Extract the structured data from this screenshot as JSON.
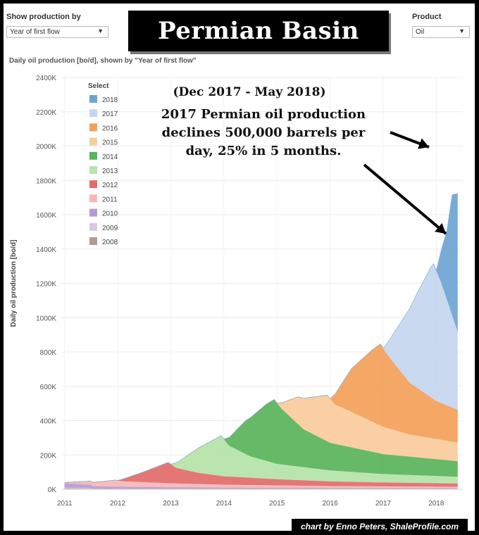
{
  "controls": {
    "show_production_label": "Show production by",
    "show_production_value": "Year of first flow",
    "product_label": "Product",
    "product_value": "Oil"
  },
  "banner_title": "Permian Basin",
  "chart_title": "Daily oil production [bo/d], shown by \"Year of first flow\"",
  "annotation": {
    "line1": "(Dec 2017 - May 2018)",
    "line2": "2017 Permian oil production",
    "line3": "declines 500,000 barrels per",
    "line4": "day, 25% in 5 months."
  },
  "credit": "chart by Enno Peters, ShaleProfile.com",
  "chart_data": {
    "type": "area",
    "ylabel": "Daily oil production [bo/d]",
    "xlabel": "",
    "ylim": [
      0,
      2400000
    ],
    "xlim": [
      2010.95,
      2018.5
    ],
    "y_ticks": [
      "0K",
      "200K",
      "400K",
      "600K",
      "800K",
      "1000K",
      "1200K",
      "1400K",
      "1600K",
      "1800K",
      "2000K",
      "2200K",
      "2400K"
    ],
    "y_tick_values": [
      0,
      200000,
      400000,
      600000,
      800000,
      1000000,
      1200000,
      1400000,
      1600000,
      1800000,
      2000000,
      2200000,
      2400000
    ],
    "x_ticks": [
      "2011",
      "2012",
      "2013",
      "2014",
      "2015",
      "2016",
      "2017",
      "2018"
    ],
    "x_tick_values": [
      2011,
      2012,
      2013,
      2014,
      2015,
      2016,
      2017,
      2018
    ],
    "grid": true,
    "legend_title": "Select",
    "legend_position": "top-left",
    "series": [
      {
        "name": "2008",
        "color": "#b89a8e",
        "start": 2011.0,
        "end": 2011.5,
        "points": [
          [
            2011.0,
            5000
          ],
          [
            2011.5,
            4000
          ]
        ]
      },
      {
        "name": "2009",
        "color": "#d9c9e0",
        "start": 2011.0,
        "end": 2011.5,
        "points": [
          [
            2011.0,
            5000
          ],
          [
            2011.5,
            4000
          ]
        ]
      },
      {
        "name": "2010",
        "color": "#b89bd4",
        "start": 2011.0,
        "end": 2018.4,
        "points": [
          [
            2011.0,
            25000
          ],
          [
            2011.5,
            18000
          ],
          [
            2012.0,
            15000
          ],
          [
            2013.0,
            12000
          ],
          [
            2014.0,
            10000
          ],
          [
            2015.0,
            9000
          ],
          [
            2016.0,
            8000
          ],
          [
            2017.0,
            7000
          ],
          [
            2018.4,
            6000
          ]
        ]
      },
      {
        "name": "2011",
        "color": "#f7b7b7",
        "start": 2011.0,
        "end": 2018.4,
        "points": [
          [
            2011.0,
            5000
          ],
          [
            2011.3,
            15000
          ],
          [
            2011.7,
            28000
          ],
          [
            2011.95,
            38000
          ],
          [
            2012.1,
            33000
          ],
          [
            2013.0,
            24000
          ],
          [
            2014.0,
            18000
          ],
          [
            2015.0,
            15000
          ],
          [
            2016.0,
            12000
          ],
          [
            2017.0,
            11000
          ],
          [
            2018.4,
            10000
          ]
        ]
      },
      {
        "name": "2012",
        "color": "#e36b6b",
        "start": 2012.0,
        "end": 2018.4,
        "points": [
          [
            2012.0,
            0
          ],
          [
            2012.5,
            60000
          ],
          [
            2012.95,
            120000
          ],
          [
            2013.1,
            90000
          ],
          [
            2013.5,
            65000
          ],
          [
            2014.0,
            48000
          ],
          [
            2015.0,
            35000
          ],
          [
            2016.0,
            26000
          ],
          [
            2017.0,
            22000
          ],
          [
            2018.4,
            18000
          ]
        ]
      },
      {
        "name": "2013",
        "color": "#b6e3a8",
        "start": 2013.0,
        "end": 2018.4,
        "points": [
          [
            2013.0,
            0
          ],
          [
            2013.5,
            140000
          ],
          [
            2013.95,
            235000
          ],
          [
            2014.1,
            180000
          ],
          [
            2014.5,
            125000
          ],
          [
            2015.0,
            90000
          ],
          [
            2016.0,
            65000
          ],
          [
            2017.0,
            50000
          ],
          [
            2018.4,
            40000
          ]
        ]
      },
      {
        "name": "2014",
        "color": "#5ab45a",
        "start": 2014.0,
        "end": 2018.4,
        "points": [
          [
            2014.0,
            0
          ],
          [
            2014.4,
            190000
          ],
          [
            2014.8,
            330000
          ],
          [
            2014.95,
            370000
          ],
          [
            2015.1,
            320000
          ],
          [
            2015.5,
            220000
          ],
          [
            2016.0,
            160000
          ],
          [
            2017.0,
            115000
          ],
          [
            2018.4,
            90000
          ]
        ]
      },
      {
        "name": "2015",
        "color": "#f9cc9c",
        "start": 2015.0,
        "end": 2018.4,
        "points": [
          [
            2015.0,
            0
          ],
          [
            2015.4,
            160000
          ],
          [
            2015.8,
            240000
          ],
          [
            2015.95,
            270000
          ],
          [
            2016.1,
            230000
          ],
          [
            2016.5,
            200000
          ],
          [
            2017.0,
            160000
          ],
          [
            2017.5,
            130000
          ],
          [
            2018.4,
            110000
          ]
        ]
      },
      {
        "name": "2016",
        "color": "#f5a05a",
        "start": 2016.0,
        "end": 2018.4,
        "points": [
          [
            2016.0,
            0
          ],
          [
            2016.4,
            250000
          ],
          [
            2016.8,
            420000
          ],
          [
            2016.95,
            475000
          ],
          [
            2017.1,
            420000
          ],
          [
            2017.5,
            300000
          ],
          [
            2018.0,
            220000
          ],
          [
            2018.4,
            190000
          ]
        ]
      },
      {
        "name": "2017",
        "color": "#c5d6ee",
        "start": 2017.0,
        "end": 2018.4,
        "points": [
          [
            2017.0,
            0
          ],
          [
            2017.3,
            260000
          ],
          [
            2017.6,
            520000
          ],
          [
            2017.9,
            760000
          ],
          [
            2017.95,
            790000
          ],
          [
            2018.1,
            700000
          ],
          [
            2018.4,
            460000
          ]
        ]
      },
      {
        "name": "2018",
        "color": "#6ea4d4",
        "start": 2018.0,
        "end": 2018.4,
        "points": [
          [
            2018.0,
            0
          ],
          [
            2018.2,
            400000
          ],
          [
            2018.3,
            700000
          ],
          [
            2018.4,
            800000
          ]
        ]
      }
    ]
  }
}
